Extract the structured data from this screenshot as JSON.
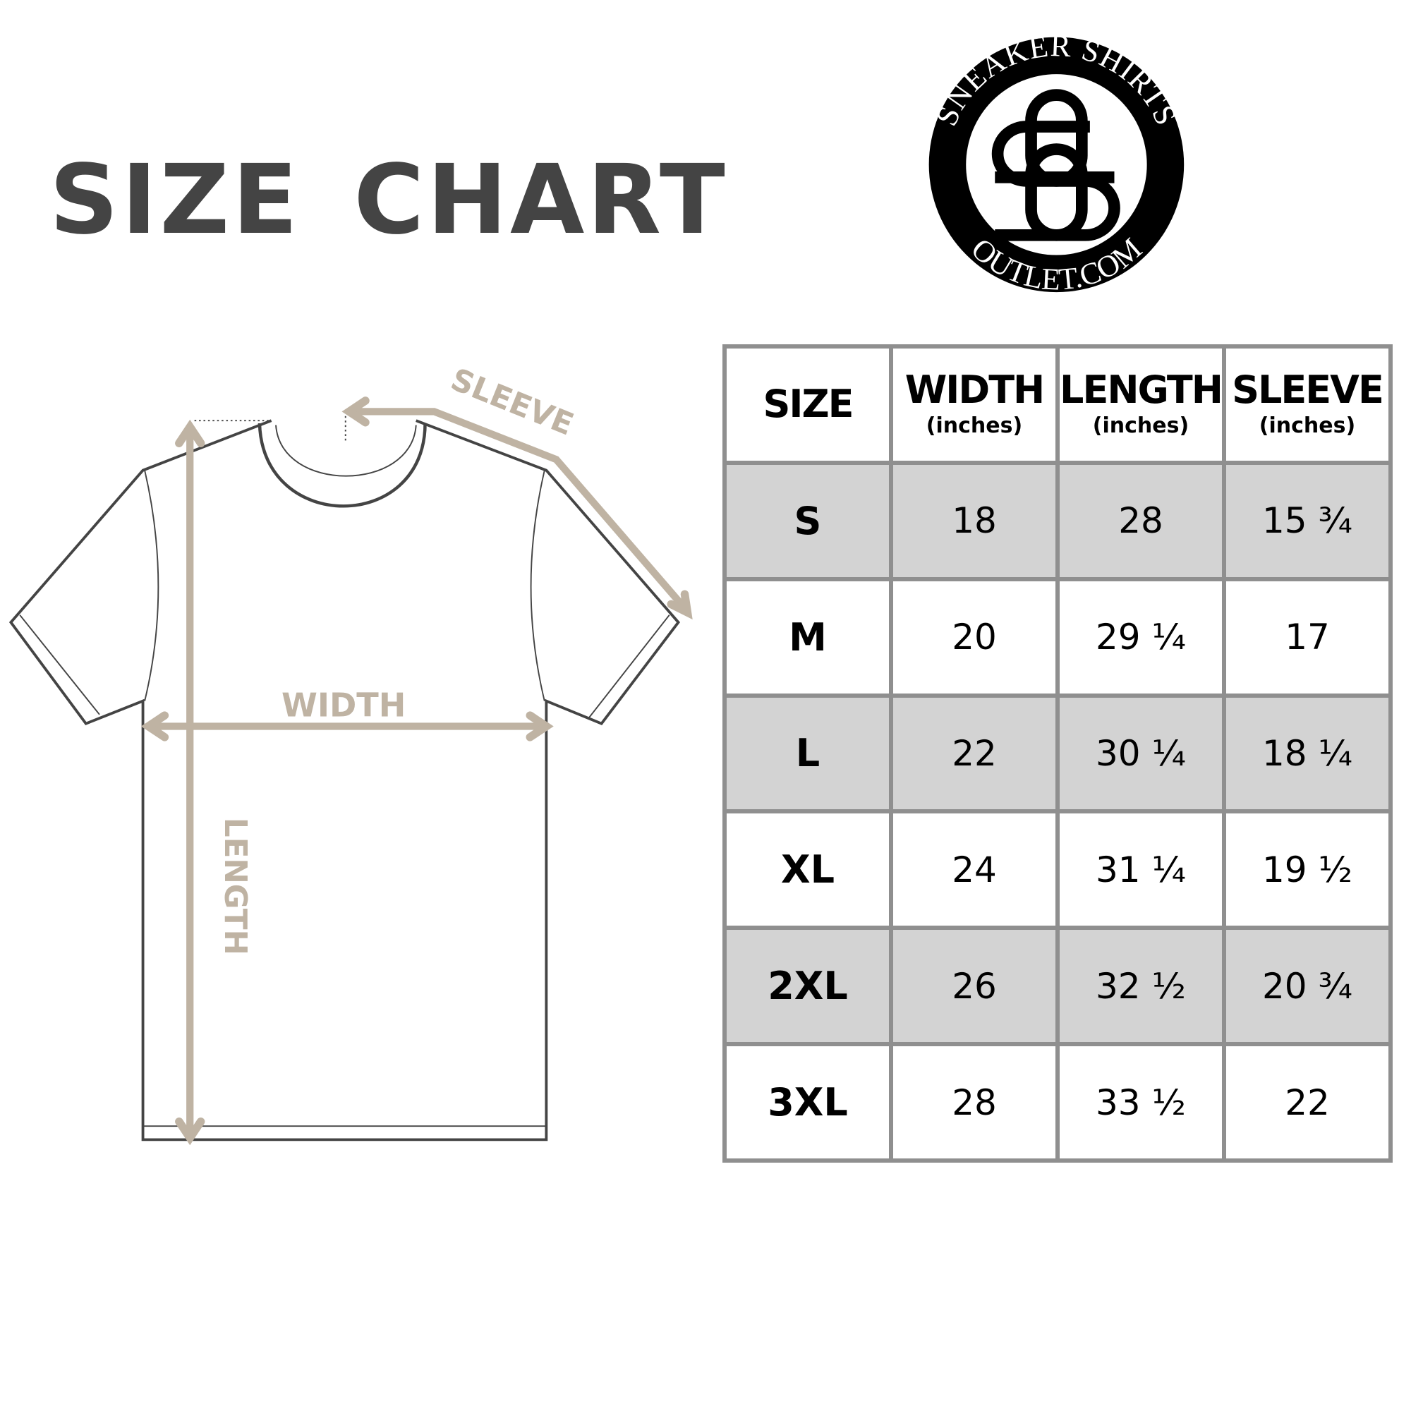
{
  "title": "SIZE CHART",
  "logo": {
    "top_text": "SNEAKER SHIRTS",
    "bottom_text": "OUTLET.COM",
    "monogram": "SO"
  },
  "diagram": {
    "sleeve_label": "SLEEVE",
    "width_label": "WIDTH",
    "length_label": "LENGTH",
    "arrow_color": "#bfb3a3"
  },
  "table": {
    "headers": [
      {
        "label": "SIZE",
        "unit": ""
      },
      {
        "label": "WIDTH",
        "unit": "(inches)"
      },
      {
        "label": "LENGTH",
        "unit": "(inches)"
      },
      {
        "label": "SLEEVE",
        "unit": "(inches)"
      }
    ],
    "rows": [
      [
        "S",
        "18",
        "28",
        "15 ¾"
      ],
      [
        "M",
        "20",
        "29 ¼",
        "17"
      ],
      [
        "L",
        "22",
        "30 ¼",
        "18 ¼"
      ],
      [
        "XL",
        "24",
        "31 ¼",
        "19 ½"
      ],
      [
        "2XL",
        "26",
        "32 ½",
        "20 ¾"
      ],
      [
        "3XL",
        "28",
        "33 ½",
        "22"
      ]
    ]
  }
}
